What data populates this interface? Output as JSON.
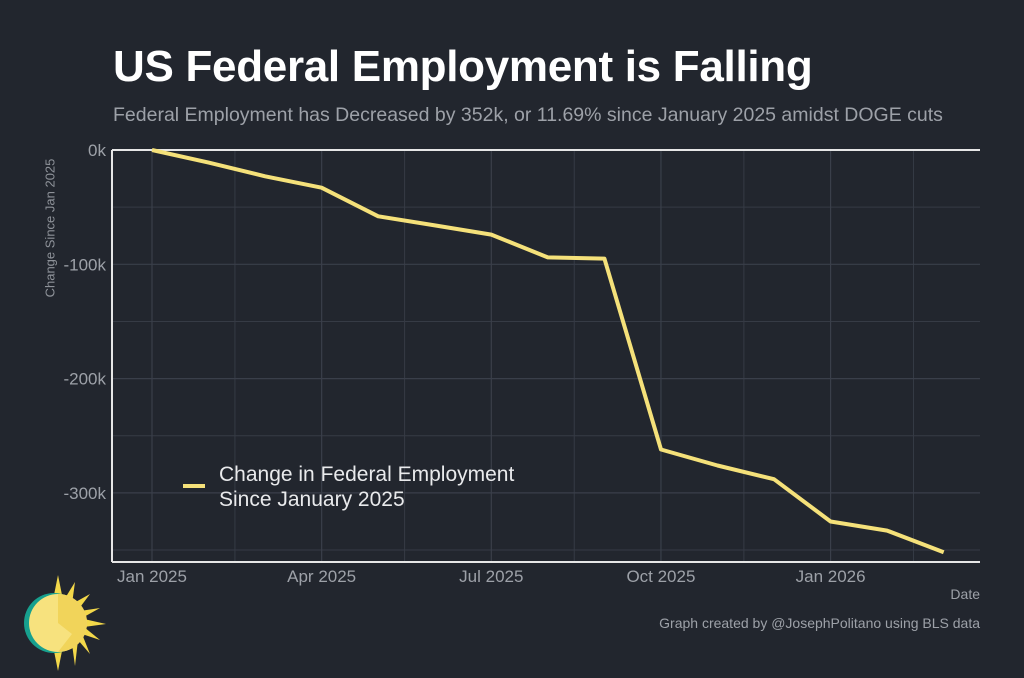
{
  "header": {
    "title": "US Federal Employment is Falling",
    "subtitle": "Federal Employment has Decreased by 352k, or 11.69% since January 2025 amidst DOGE cuts"
  },
  "footer": {
    "caption": "Graph created by @JosephPolitano using BLS data"
  },
  "logo": {
    "icon": "sun-logo-icon"
  },
  "colors": {
    "background": "#22262e",
    "line": "#f5e17a",
    "axis": "#e6e6e6",
    "grid": "#363b45",
    "text_muted": "#9da1a8"
  },
  "chart_data": {
    "type": "line",
    "title": "US Federal Employment is Falling",
    "subtitle": "Federal Employment has Decreased by 352k, or 11.69% since January 2025 amidst DOGE cuts",
    "xlabel": "Date",
    "ylabel": "Change Since Jan 2025",
    "x": [
      "2025-01",
      "2025-02",
      "2025-03",
      "2025-04",
      "2025-05",
      "2025-06",
      "2025-07",
      "2025-08",
      "2025-09",
      "2025-10",
      "2025-11",
      "2025-12",
      "2026-01",
      "2026-02",
      "2026-03"
    ],
    "series": [
      {
        "name": "Change in Federal Employment Since January 2025",
        "legend_lines": [
          "Change in Federal Employment",
          "Since January 2025"
        ],
        "values": [
          0,
          -11,
          -23,
          -33,
          -58,
          -66,
          -74,
          -94,
          -95,
          -262,
          -276,
          -288,
          -325,
          -333,
          -352
        ]
      }
    ],
    "units": "thousands",
    "ylim": [
      -360,
      0
    ],
    "xlim": [
      "2024-12-15",
      "2026-03-25"
    ],
    "y_ticks": [
      0,
      -100,
      -200,
      -300
    ],
    "y_tick_labels": [
      "0k",
      "-100k",
      "-200k",
      "-300k"
    ],
    "y_minor_ticks": [
      -50,
      -150,
      -250,
      -350
    ],
    "x_ticks": [
      "2025-01",
      "2025-04",
      "2025-07",
      "2025-10",
      "2026-01"
    ],
    "x_tick_labels": [
      "Jan 2025",
      "Apr 2025",
      "Jul 2025",
      "Oct 2025",
      "Jan 2026"
    ],
    "x_minor_ticks": [
      "2025-02-15",
      "2025-05-15",
      "2025-08-15",
      "2025-11-15",
      "2026-02-15"
    ],
    "grid": true,
    "legend_position": "bottom-left"
  }
}
